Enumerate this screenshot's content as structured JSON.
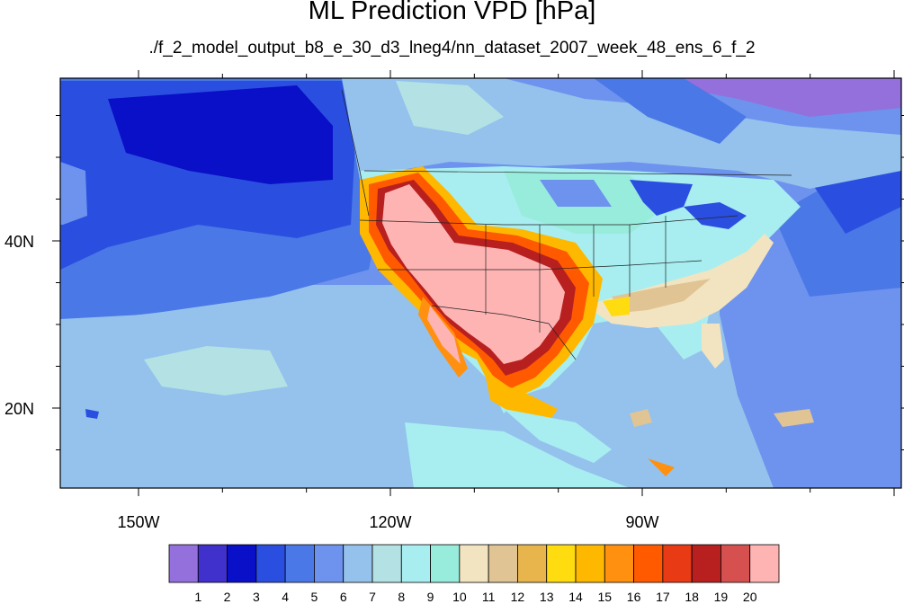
{
  "title": "ML Prediction VPD [hPa]",
  "subtitle": "./f_2_model_output_b8_e_30_d3_lneg4/nn_dataset_2007_week_48_ens_6_f_2",
  "axes": {
    "x_ticks": [
      {
        "label": "150W",
        "lon": -150
      },
      {
        "label": "120W",
        "lon": -120
      },
      {
        "label": "90W",
        "lon": -90
      }
    ],
    "y_ticks": [
      {
        "label": "40N",
        "lat": 40
      },
      {
        "label": "20N",
        "lat": 20
      }
    ]
  },
  "colorbar": {
    "labels": [
      "1",
      "2",
      "3",
      "4",
      "5",
      "6",
      "7",
      "8",
      "9",
      "10",
      "11",
      "12",
      "13",
      "14",
      "15",
      "16",
      "17",
      "18",
      "19",
      "20"
    ],
    "colors": [
      "#9370db",
      "#4030cc",
      "#0a0fc8",
      "#2a4fe0",
      "#4a78e6",
      "#6e93ee",
      "#94c2ec",
      "#b4e2e4",
      "#a8eef0",
      "#98ecdc",
      "#f2e4c0",
      "#e0c494",
      "#e8b44c",
      "#ffdc10",
      "#ffb800",
      "#ff9010",
      "#ff5a00",
      "#e83a14",
      "#b82020",
      "#d65050",
      "#ffb4b4"
    ]
  },
  "colors": {
    "ocean_deep": "#0a0fc8",
    "ocean_mid": "#2a4fe0",
    "ocean_light": "#6e93ee",
    "arid_high": "#ffb4b4"
  }
}
